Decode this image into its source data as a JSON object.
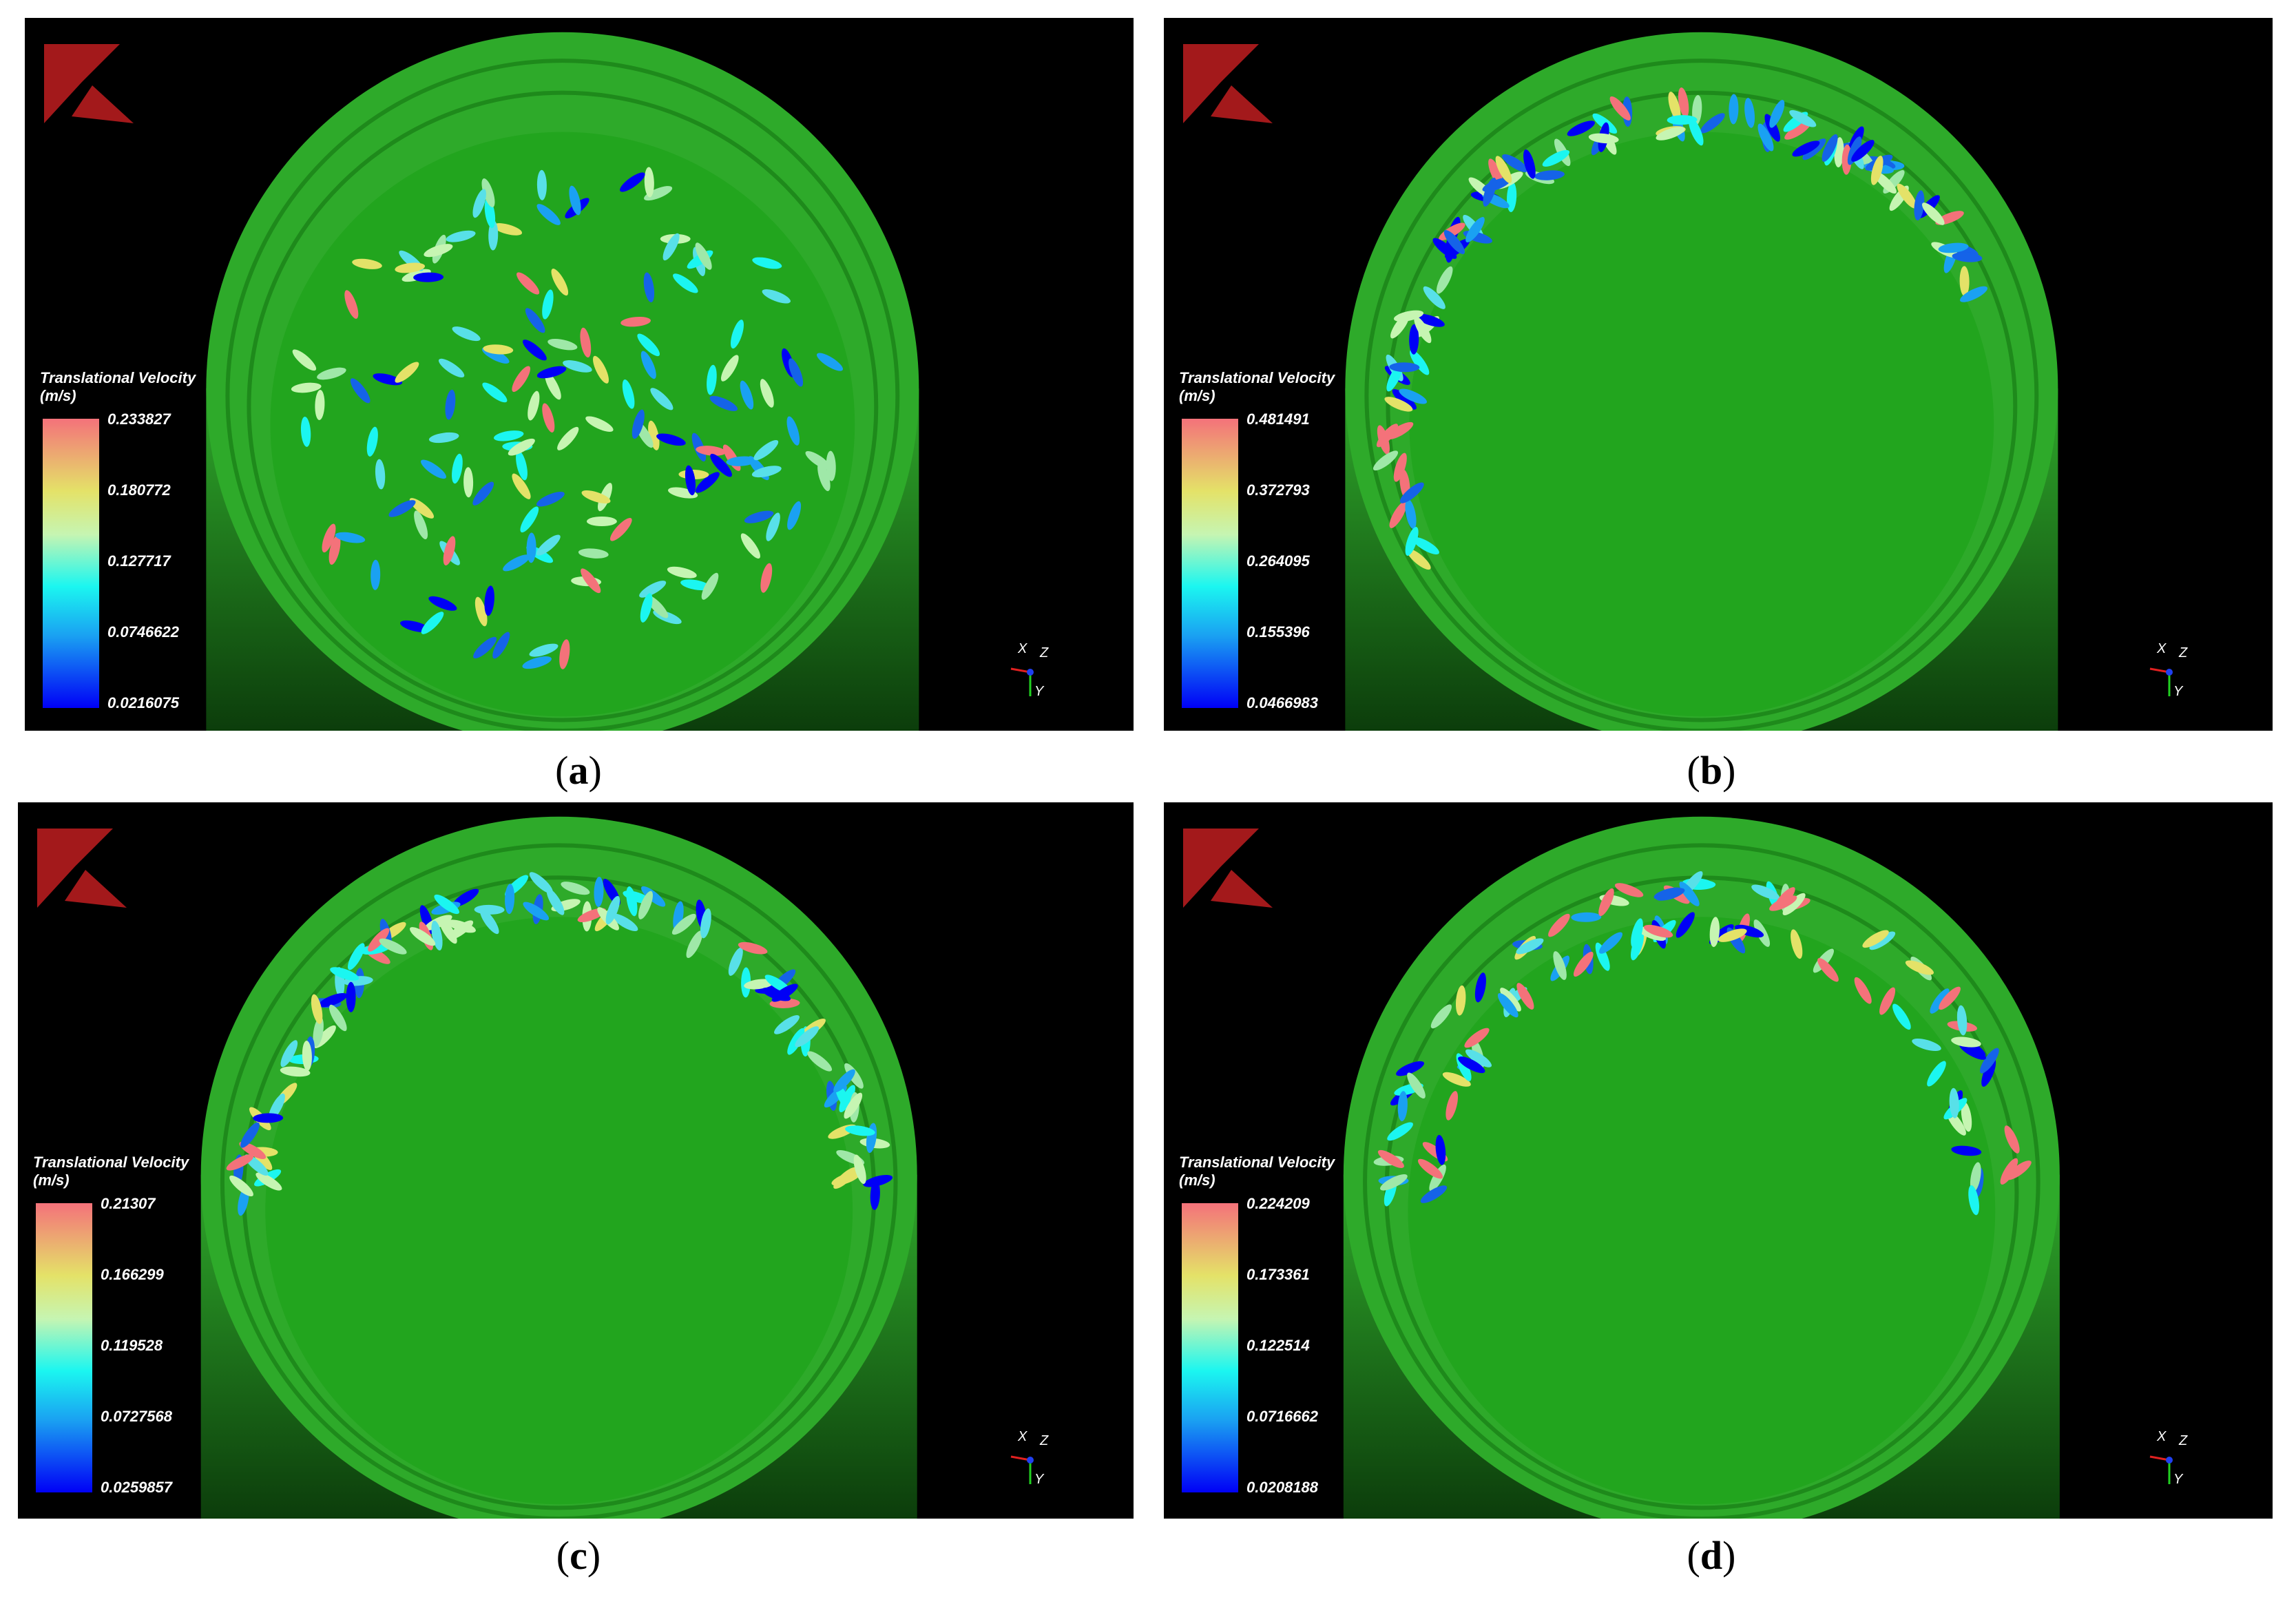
{
  "panels": [
    {
      "id": "a",
      "caption_open": "(",
      "caption_letter": "a",
      "caption_close": ")",
      "legend_title_1": "Translational Velocity",
      "legend_title_2": "(m/s)",
      "ticks": [
        "0.233827",
        "0.180772",
        "0.127717",
        "0.0746622",
        "0.0216075"
      ],
      "particle_layout": "scattered"
    },
    {
      "id": "b",
      "caption_open": "(",
      "caption_letter": "b",
      "caption_close": ")",
      "legend_title_1": "Translational Velocity",
      "legend_title_2": "(m/s)",
      "ticks": [
        "0.481491",
        "0.372793",
        "0.264095",
        "0.155396",
        "0.0466983"
      ],
      "particle_layout": "upper-left-arc"
    },
    {
      "id": "c",
      "caption_open": "(",
      "caption_letter": "c",
      "caption_close": ")",
      "legend_title_1": "Translational Velocity",
      "legend_title_2": "(m/s)",
      "ticks": [
        "0.21307",
        "0.166299",
        "0.119528",
        "0.0727568",
        "0.0259857"
      ],
      "particle_layout": "ring-arc"
    },
    {
      "id": "d",
      "caption_open": "(",
      "caption_letter": "d",
      "caption_close": ")",
      "legend_title_1": "Translational Velocity",
      "legend_title_2": "(m/s)",
      "ticks": [
        "0.224209",
        "0.173361",
        "0.122514",
        "0.0716662",
        "0.0208188"
      ],
      "particle_layout": "double-ring-arc"
    }
  ],
  "axis_labels": {
    "x": "X",
    "z": "Z",
    "y": "Y"
  },
  "colors": {
    "background": "#000000",
    "drum": "#2fa82b",
    "drum_inner": "#21a11d",
    "logo": "#a3191b",
    "colormap_high": "#f4727a",
    "colormap_low": "#0000f6"
  }
}
